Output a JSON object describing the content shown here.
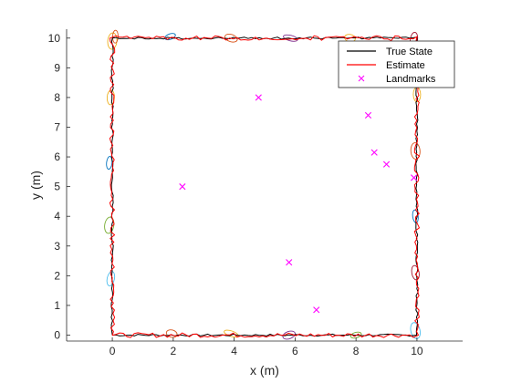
{
  "chart_data": {
    "type": "line",
    "title": "",
    "xlabel": "x (m)",
    "ylabel": "y (m)",
    "xlim": [
      -1.5,
      11.5
    ],
    "ylim": [
      -0.2,
      10.3
    ],
    "xticks": [
      0,
      2,
      4,
      6,
      8,
      10
    ],
    "yticks": [
      0,
      1,
      2,
      3,
      4,
      5,
      6,
      7,
      8,
      9,
      10
    ],
    "grid": false,
    "legend_position": "top-right",
    "series": [
      {
        "name": "True State",
        "kind": "line",
        "color": "#000000",
        "x": [
          0,
          10,
          10,
          0,
          0
        ],
        "y": [
          0,
          0,
          10,
          10,
          0
        ]
      },
      {
        "name": "Estimate",
        "kind": "line",
        "color": "#ff0000",
        "x": [
          0,
          10,
          10,
          0,
          0
        ],
        "y": [
          0,
          0,
          10,
          10,
          0
        ]
      },
      {
        "name": "Landmarks",
        "kind": "scatter",
        "marker": "x",
        "color": "#ff00ff",
        "x": [
          2.3,
          4.8,
          5.8,
          6.7,
          8.4,
          8.6,
          9.0,
          9.9
        ],
        "y": [
          5.0,
          8.0,
          2.45,
          0.85,
          7.4,
          6.15,
          5.75,
          5.3
        ]
      }
    ],
    "covariance_ellipses": [
      {
        "x": 1.9,
        "y": 10.05,
        "color": "#0072bd"
      },
      {
        "x": 3.9,
        "y": 10.0,
        "color": "#d95319"
      },
      {
        "x": 5.85,
        "y": 10.0,
        "color": "#7e2f8e"
      },
      {
        "x": 7.8,
        "y": 10.0,
        "color": "#edb120"
      },
      {
        "x": 9.9,
        "y": 9.95,
        "color": "#a2142f"
      },
      {
        "x": 0.0,
        "y": 9.9,
        "color": "#edb120"
      },
      {
        "x": 0.1,
        "y": 10.05,
        "color": "#d95319"
      },
      {
        "x": 10.0,
        "y": 8.1,
        "color": "#edb120"
      },
      {
        "x": 9.95,
        "y": 6.2,
        "color": "#d95319"
      },
      {
        "x": 9.95,
        "y": 4.0,
        "color": "#0072bd"
      },
      {
        "x": 9.95,
        "y": 2.1,
        "color": "#a2142f"
      },
      {
        "x": 9.95,
        "y": 0.15,
        "color": "#4dbeee"
      },
      {
        "x": 8.0,
        "y": 0.0,
        "color": "#77ac30"
      },
      {
        "x": 5.8,
        "y": 0.0,
        "color": "#7e2f8e"
      },
      {
        "x": 3.9,
        "y": 0.05,
        "color": "#edb120"
      },
      {
        "x": 1.95,
        "y": 0.05,
        "color": "#d95319"
      },
      {
        "x": -0.05,
        "y": 1.9,
        "color": "#4dbeee"
      },
      {
        "x": -0.1,
        "y": 3.7,
        "color": "#77ac30"
      },
      {
        "x": -0.1,
        "y": 5.8,
        "color": "#0072bd"
      },
      {
        "x": -0.05,
        "y": 8.0,
        "color": "#edb120"
      }
    ]
  }
}
